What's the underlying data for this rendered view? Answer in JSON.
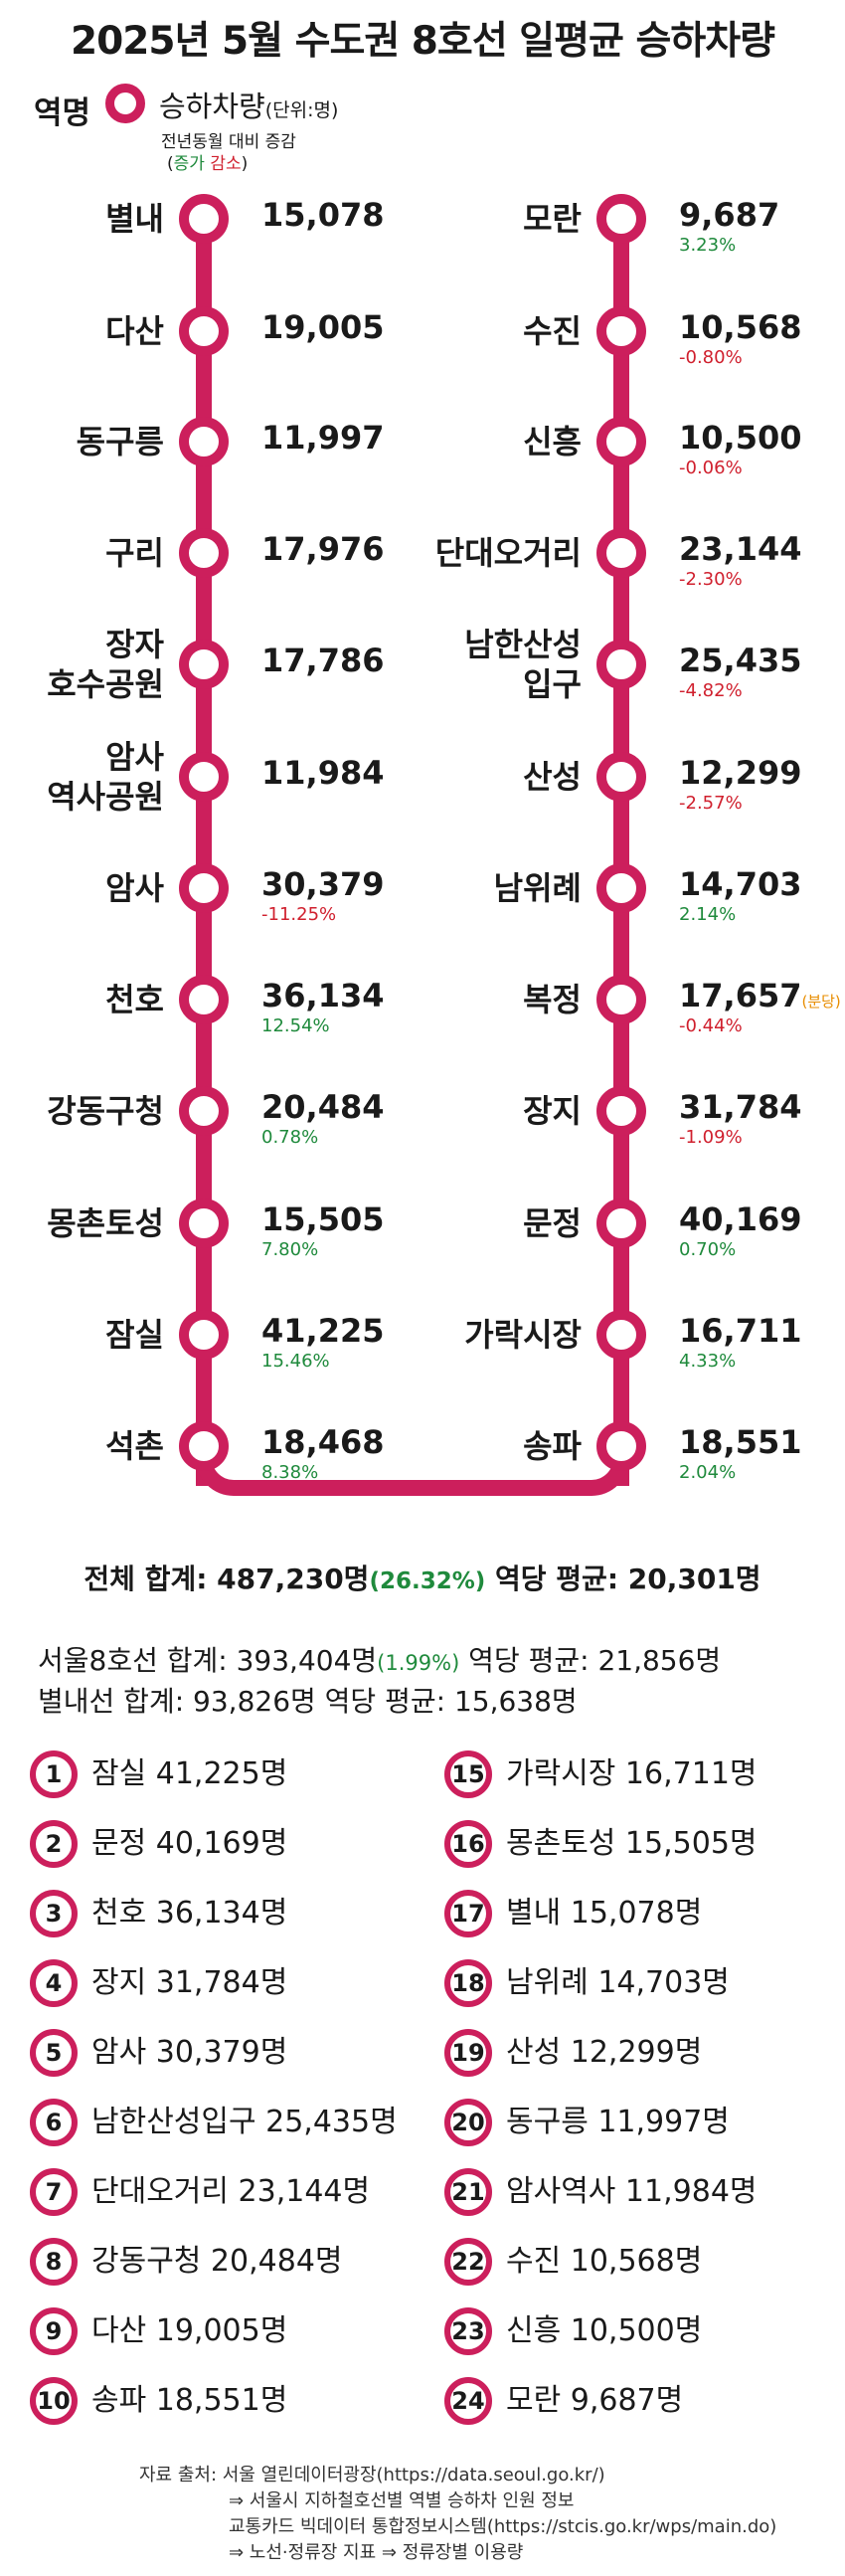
{
  "title": "2025년 5월 수도권 8호선 일평균 승하차량",
  "legend": {
    "station_label": "역명",
    "count_label": "승하차량",
    "unit_label": "(단위:명)",
    "change_label": "전년동월 대비 증감",
    "open_paren": "(",
    "increase_label": "증가",
    "decrease_label": "감소",
    "close_paren": ")"
  },
  "colors": {
    "line": "#cc1f5c",
    "increase": "#1f8a3c",
    "decrease": "#d0202e",
    "note": "#e88d00"
  },
  "left_stations": [
    {
      "name_lines": [
        "별내"
      ],
      "count": "15,078",
      "change": ""
    },
    {
      "name_lines": [
        "다산"
      ],
      "count": "19,005",
      "change": ""
    },
    {
      "name_lines": [
        "동구릉"
      ],
      "count": "11,997",
      "change": ""
    },
    {
      "name_lines": [
        "구리"
      ],
      "count": "17,976",
      "change": ""
    },
    {
      "name_lines": [
        "장자",
        "호수공원"
      ],
      "count": "17,786",
      "change": ""
    },
    {
      "name_lines": [
        "암사",
        "역사공원"
      ],
      "count": "11,984",
      "change": ""
    },
    {
      "name_lines": [
        "암사"
      ],
      "count": "30,379",
      "change": "-11.25%"
    },
    {
      "name_lines": [
        "천호"
      ],
      "count": "36,134",
      "change": "12.54%"
    },
    {
      "name_lines": [
        "강동구청"
      ],
      "count": "20,484",
      "change": "0.78%"
    },
    {
      "name_lines": [
        "몽촌토성"
      ],
      "count": "15,505",
      "change": "7.80%"
    },
    {
      "name_lines": [
        "잠실"
      ],
      "count": "41,225",
      "change": "15.46%"
    },
    {
      "name_lines": [
        "석촌"
      ],
      "count": "18,468",
      "change": "8.38%"
    }
  ],
  "right_stations": [
    {
      "name_lines": [
        "모란"
      ],
      "count": "9,687",
      "change": "3.23%",
      "note": ""
    },
    {
      "name_lines": [
        "수진"
      ],
      "count": "10,568",
      "change": "-0.80%",
      "note": ""
    },
    {
      "name_lines": [
        "신흥"
      ],
      "count": "10,500",
      "change": "-0.06%",
      "note": ""
    },
    {
      "name_lines": [
        "단대오거리"
      ],
      "count": "23,144",
      "change": "-2.30%",
      "note": ""
    },
    {
      "name_lines": [
        "남한산성",
        "입구"
      ],
      "count": "25,435",
      "change": "-4.82%",
      "note": ""
    },
    {
      "name_lines": [
        "산성"
      ],
      "count": "12,299",
      "change": "-2.57%",
      "note": ""
    },
    {
      "name_lines": [
        "남위례"
      ],
      "count": "14,703",
      "change": "2.14%",
      "note": ""
    },
    {
      "name_lines": [
        "복정"
      ],
      "count": "17,657",
      "change": "-0.44%",
      "note": "(분당)"
    },
    {
      "name_lines": [
        "장지"
      ],
      "count": "31,784",
      "change": "-1.09%",
      "note": ""
    },
    {
      "name_lines": [
        "문정"
      ],
      "count": "40,169",
      "change": "0.70%",
      "note": ""
    },
    {
      "name_lines": [
        "가락시장"
      ],
      "count": "16,711",
      "change": "4.33%",
      "note": ""
    },
    {
      "name_lines": [
        "송파"
      ],
      "count": "18,551",
      "change": "2.04%",
      "note": ""
    }
  ],
  "total": {
    "label": "전체 합계: 487,230명",
    "change": "(26.32%)",
    "avg": " 역당 평균: 20,301명"
  },
  "line8_summary": {
    "label": "서울8호선 합계: 393,404명",
    "change": "(1.99%)",
    "avg": " 역당 평균: 21,856명"
  },
  "byeollae_summary": {
    "label": "별내선 합계: 93,826명 역당 평균: 15,638명"
  },
  "ranking": [
    {
      "rank": "1",
      "text": "잠실 41,225명"
    },
    {
      "rank": "2",
      "text": "문정 40,169명"
    },
    {
      "rank": "3",
      "text": "천호 36,134명"
    },
    {
      "rank": "4",
      "text": "장지 31,784명"
    },
    {
      "rank": "5",
      "text": "암사 30,379명"
    },
    {
      "rank": "6",
      "text": "남한산성입구 25,435명"
    },
    {
      "rank": "7",
      "text": "단대오거리 23,144명"
    },
    {
      "rank": "8",
      "text": "강동구청 20,484명"
    },
    {
      "rank": "9",
      "text": "다산 19,005명"
    },
    {
      "rank": "10",
      "text": "송파 18,551명"
    },
    {
      "rank": "15",
      "text": "가락시장 16,711명"
    },
    {
      "rank": "16",
      "text": "몽촌토성 15,505명"
    },
    {
      "rank": "17",
      "text": "별내 15,078명"
    },
    {
      "rank": "18",
      "text": "남위례 14,703명"
    },
    {
      "rank": "19",
      "text": "산성 12,299명"
    },
    {
      "rank": "20",
      "text": "동구릉 11,997명"
    },
    {
      "rank": "21",
      "text": "암사역사 11,984명"
    },
    {
      "rank": "22",
      "text": "수진 10,568명"
    },
    {
      "rank": "23",
      "text": "신흥 10,500명"
    },
    {
      "rank": "24",
      "text": "모란 9,687명"
    }
  ],
  "source": [
    "자료 출처: 서울 열린데이터광장(https://data.seoul.go.kr/)",
    "⇒ 서울시 지하철호선별 역별 승하차 인원 정보",
    "교통카드 빅데이터 통합정보시스템(https://stcis.go.kr/wps/main.do)",
    "⇒ 노선·정류장 지표 ⇒ 정류장별 이용량"
  ]
}
